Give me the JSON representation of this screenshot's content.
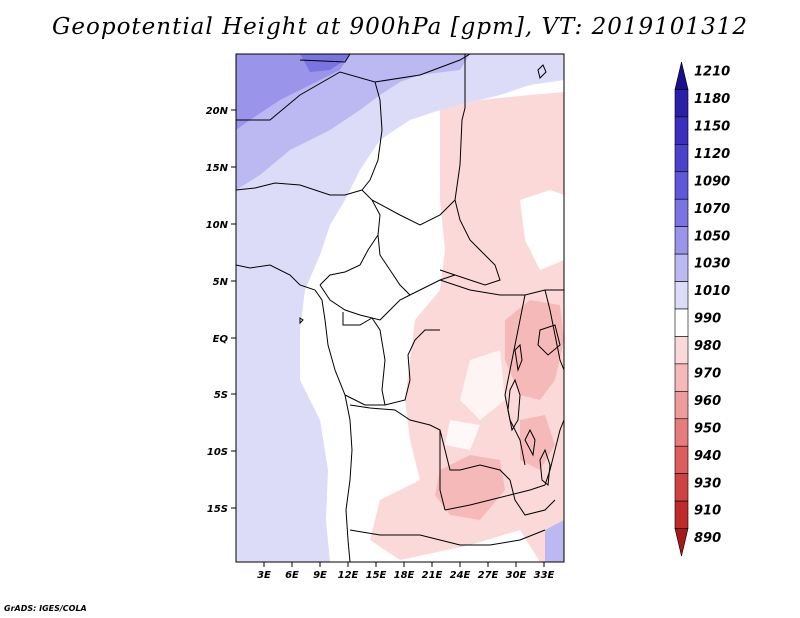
{
  "title": "Geopotential Height at 900hPa [gpm], VT: 2019101312",
  "credit": "GrADS: IGES/COLA",
  "map": {
    "region": "Central Africa",
    "lon_range": [
      0,
      34
    ],
    "lat_range": [
      -20,
      24
    ],
    "lat_labels": [
      "20N",
      "15N",
      "10N",
      "5N",
      "EQ",
      "5S",
      "10S",
      "15S"
    ],
    "lon_labels": [
      "3E",
      "6E",
      "9E",
      "12E",
      "15E",
      "18E",
      "21E",
      "24E",
      "27E",
      "30E",
      "33E"
    ]
  },
  "colorbar": {
    "levels": [
      "1210",
      "1180",
      "1150",
      "1120",
      "1090",
      "1070",
      "1050",
      "1030",
      "1010",
      "990",
      "980",
      "970",
      "960",
      "950",
      "940",
      "930",
      "910",
      "890"
    ],
    "colors": [
      "#1a0f8c",
      "#2a1fa8",
      "#3a2fbe",
      "#4b42cc",
      "#5f58d8",
      "#7a74e2",
      "#9a95ea",
      "#bcb9f2",
      "#dcdcf8",
      "#ffffff",
      "#fbd9d9",
      "#f6b9b9",
      "#ef9b9b",
      "#e67c7c",
      "#dd5d5d",
      "#cf4242",
      "#bf2b2b",
      "#a81818"
    ]
  }
}
